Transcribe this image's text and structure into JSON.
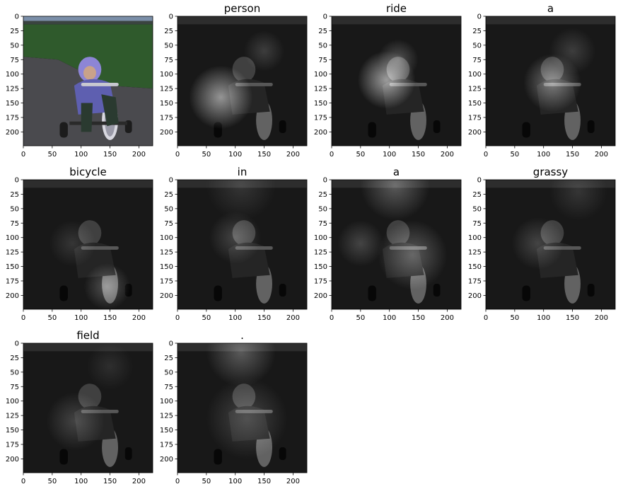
{
  "chart_data": {
    "type": "heatmap",
    "description": "Attention maps over an image of a child riding a tricycle, one panel per caption word",
    "panels": [
      {
        "title": "",
        "kind": "photo"
      },
      {
        "title": "person",
        "kind": "attention",
        "focus": [
          {
            "x": 75,
            "y": 140,
            "r": 55,
            "w": 0.85
          },
          {
            "x": 150,
            "y": 60,
            "r": 35,
            "w": 0.25
          }
        ]
      },
      {
        "title": "ride",
        "kind": "attention",
        "focus": [
          {
            "x": 95,
            "y": 110,
            "r": 50,
            "w": 0.9
          },
          {
            "x": 115,
            "y": 75,
            "r": 35,
            "w": 0.4
          }
        ]
      },
      {
        "title": "a",
        "kind": "attention",
        "focus": [
          {
            "x": 115,
            "y": 115,
            "r": 50,
            "w": 0.6
          },
          {
            "x": 150,
            "y": 60,
            "r": 40,
            "w": 0.25
          }
        ]
      },
      {
        "title": "bicycle",
        "kind": "attention",
        "focus": [
          {
            "x": 145,
            "y": 185,
            "r": 40,
            "w": 0.4
          },
          {
            "x": 85,
            "y": 110,
            "r": 40,
            "w": 0.2
          }
        ]
      },
      {
        "title": "in",
        "kind": "attention",
        "focus": [
          {
            "x": 100,
            "y": 100,
            "r": 45,
            "w": 0.3
          },
          {
            "x": 110,
            "y": 10,
            "r": 60,
            "w": 0.2
          }
        ]
      },
      {
        "title": "a",
        "kind": "attention",
        "focus": [
          {
            "x": 110,
            "y": 10,
            "r": 60,
            "w": 0.45
          },
          {
            "x": 140,
            "y": 130,
            "r": 60,
            "w": 0.45
          },
          {
            "x": 50,
            "y": 110,
            "r": 40,
            "w": 0.3
          }
        ]
      },
      {
        "title": "grassy",
        "kind": "attention",
        "focus": [
          {
            "x": 90,
            "y": 110,
            "r": 45,
            "w": 0.3
          },
          {
            "x": 160,
            "y": 20,
            "r": 50,
            "w": 0.2
          }
        ]
      },
      {
        "title": "field",
        "kind": "attention",
        "focus": [
          {
            "x": 90,
            "y": 135,
            "r": 50,
            "w": 0.3
          },
          {
            "x": 150,
            "y": 40,
            "r": 40,
            "w": 0.15
          }
        ]
      },
      {
        "title": ".",
        "kind": "attention",
        "focus": [
          {
            "x": 110,
            "y": 15,
            "r": 60,
            "w": 0.45
          },
          {
            "x": 120,
            "y": 130,
            "r": 70,
            "w": 0.3
          }
        ]
      }
    ],
    "xlim": [
      0,
      224
    ],
    "ylim": [
      224,
      0
    ],
    "xticks": [
      "0",
      "50",
      "100",
      "150",
      "200"
    ],
    "yticks": [
      "0",
      "25",
      "50",
      "75",
      "100",
      "125",
      "150",
      "175",
      "200"
    ],
    "grid": false,
    "colors": {
      "sky": "#7a8ea8",
      "grass": "#2f5a2c",
      "road": "#4a4a4e",
      "coat": "#5e5fb0",
      "hat": "#8d85d6",
      "tire": "#1c1c1c",
      "text": "#000000"
    }
  }
}
